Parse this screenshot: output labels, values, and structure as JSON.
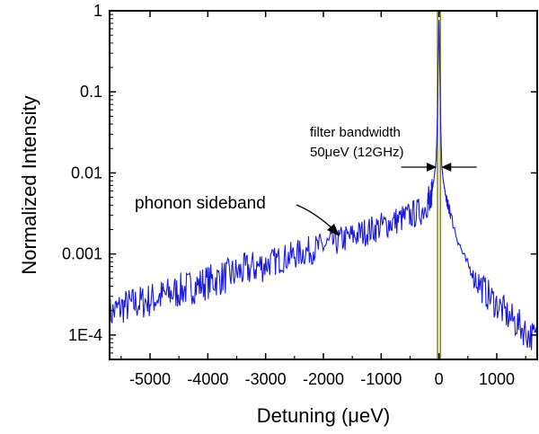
{
  "chart_data": {
    "type": "line",
    "xlabel": "Detuning (μeV)",
    "ylabel": "Normalized Intensity",
    "x_scale": "linear",
    "y_scale": "log",
    "xlim": [
      -5700,
      1700
    ],
    "ylim": [
      5e-05,
      1
    ],
    "x_ticks": [
      {
        "value": -5000,
        "label": "-5000"
      },
      {
        "value": -4000,
        "label": "-4000"
      },
      {
        "value": -3000,
        "label": "-3000"
      },
      {
        "value": -2000,
        "label": "-2000"
      },
      {
        "value": -1000,
        "label": "-1000"
      },
      {
        "value": 0,
        "label": "0"
      },
      {
        "value": 1000,
        "label": "1000"
      }
    ],
    "y_ticks": [
      {
        "value": 1,
        "label": "1"
      },
      {
        "value": 0.1,
        "label": "0.1"
      },
      {
        "value": 0.01,
        "label": "0.01"
      },
      {
        "value": 0.001,
        "label": "0.001"
      },
      {
        "value": 0.0001,
        "label": "1E-4"
      }
    ],
    "grid": false,
    "legend": "none",
    "series_color": "#1a1adc",
    "filter_color": "#8b8b2e",
    "series": [
      {
        "color": "#1a1adc",
        "points": [
          [
            -5700,
            0.00018
          ],
          [
            -5500,
            0.00022
          ],
          [
            -5000,
            0.00027
          ],
          [
            -4500,
            0.00035
          ],
          [
            -4000,
            0.00045
          ],
          [
            -3500,
            0.00058
          ],
          [
            -3000,
            0.00075
          ],
          [
            -2500,
            0.00097
          ],
          [
            -2000,
            0.00125
          ],
          [
            -1500,
            0.00165
          ],
          [
            -1000,
            0.0022
          ],
          [
            -600,
            0.0028
          ],
          [
            -300,
            0.0034
          ],
          [
            -200,
            0.0042
          ],
          [
            -120,
            0.006
          ],
          [
            -80,
            0.009
          ],
          [
            -50,
            0.014
          ],
          [
            -25,
            0.05
          ],
          [
            -12,
            0.25
          ],
          [
            0,
            0.75
          ],
          [
            12,
            0.25
          ],
          [
            25,
            0.05
          ],
          [
            50,
            0.012
          ],
          [
            80,
            0.0075
          ],
          [
            120,
            0.005
          ],
          [
            200,
            0.0031
          ],
          [
            300,
            0.0017
          ],
          [
            450,
            0.00085
          ],
          [
            600,
            0.00055
          ],
          [
            800,
            0.00034
          ],
          [
            1000,
            0.00024
          ],
          [
            1200,
            0.00017
          ],
          [
            1400,
            0.00013
          ],
          [
            1550,
            0.0001
          ],
          [
            1700,
            9e-05
          ]
        ]
      }
    ],
    "filter_band": {
      "center": 0,
      "width": 50
    },
    "annotations": {
      "sideband": "phonon sideband",
      "filter_line1": "filter bandwidth",
      "filter_line2": "50μeV (12GHz)"
    }
  }
}
